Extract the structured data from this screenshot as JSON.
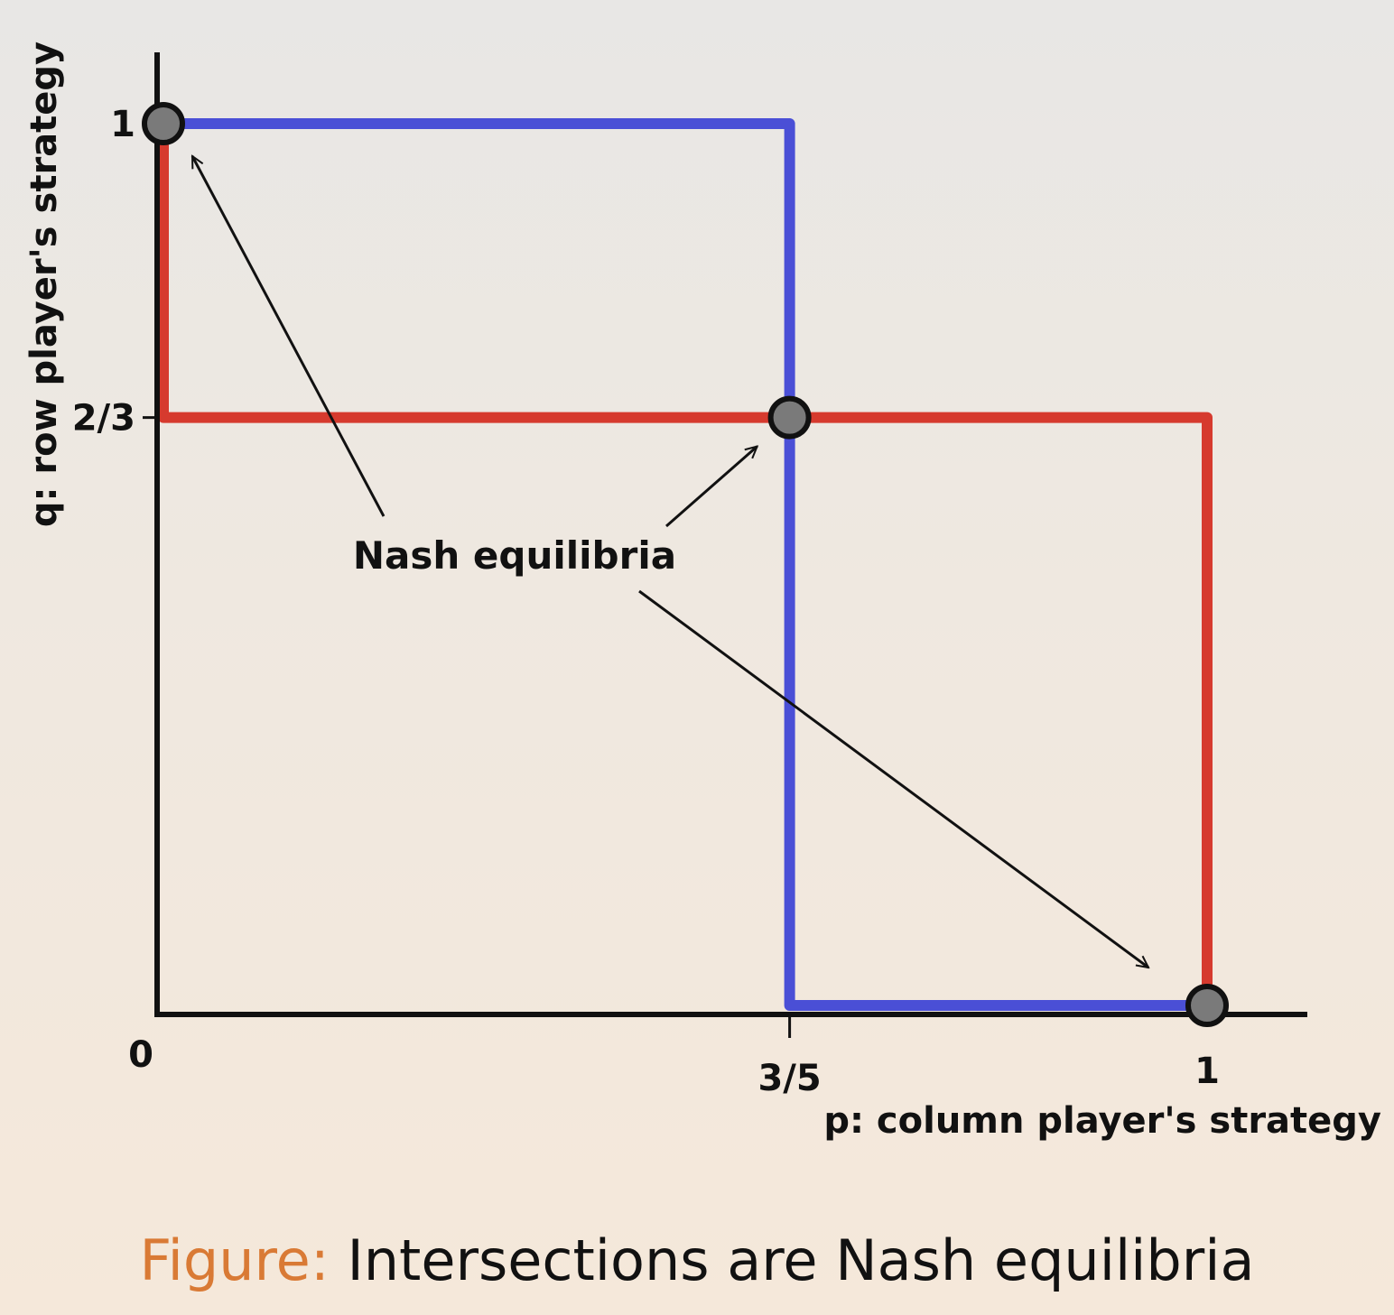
{
  "chart_data": {
    "type": "line",
    "xlabel": "p: column player's strategy",
    "ylabel": "q: row player's strategy",
    "xlim": [
      0,
      1
    ],
    "ylim": [
      0,
      1
    ],
    "origin_label": "0",
    "x_ticks": [
      {
        "value": 0.6,
        "label": "3/5"
      },
      {
        "value": 1,
        "label": "1"
      }
    ],
    "y_ticks": [
      {
        "value": 0.6667,
        "label": "2/3"
      },
      {
        "value": 1,
        "label": "1"
      }
    ],
    "series": [
      {
        "color": "#4a4fd6",
        "points": [
          [
            0,
            1
          ],
          [
            0.6,
            1
          ],
          [
            0.6,
            0
          ],
          [
            1,
            0
          ]
        ]
      },
      {
        "color": "#d63a2e",
        "points": [
          [
            0,
            1
          ],
          [
            0,
            0.6667
          ],
          [
            1,
            0.6667
          ],
          [
            1,
            0
          ]
        ]
      }
    ],
    "equilibria": [
      {
        "p": 0,
        "q": 1
      },
      {
        "p": 0.6,
        "q": 0.6667
      },
      {
        "p": 1,
        "q": 0
      }
    ],
    "annotation": {
      "text": "Nash equilibria"
    }
  },
  "caption": {
    "prefix": "Figure:",
    "text": "Intersections are Nash equilibria"
  }
}
